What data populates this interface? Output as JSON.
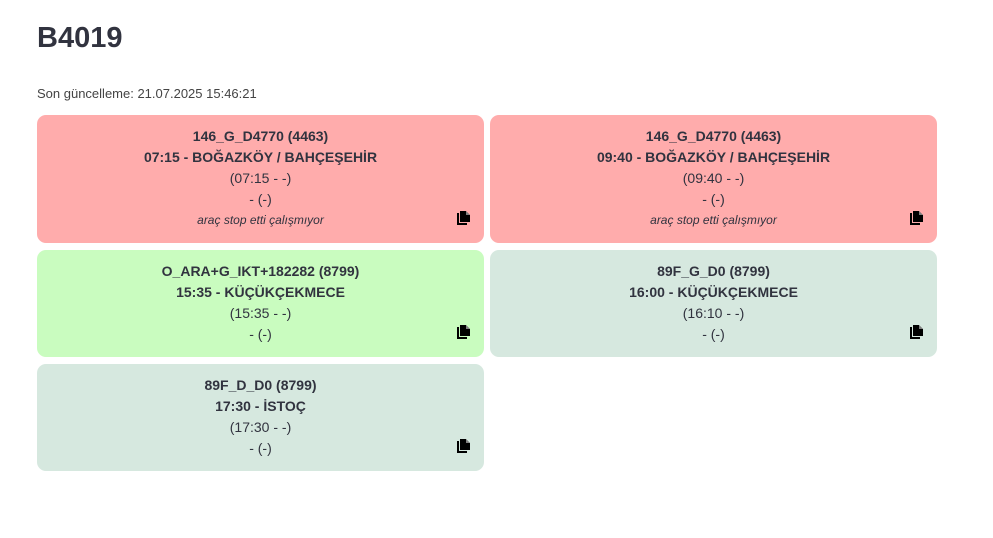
{
  "header": {
    "title": "B4019",
    "updated": "Son güncelleme: 21.07.2025 15:46:21"
  },
  "cards": [
    {
      "lines": [
        "146_G_D4770 (4463)",
        "07:15 - BOĞAZKÖY / BAHÇEŞEHİR",
        "(07:15 - -)",
        "- (-)"
      ],
      "note": "araç stop etti çalışmıyor",
      "color": "#ffacac"
    },
    {
      "lines": [
        "146_G_D4770 (4463)",
        "09:40 - BOĞAZKÖY / BAHÇEŞEHİR",
        "(09:40 - -)",
        "- (-)"
      ],
      "note": "araç stop etti çalışmıyor",
      "color": "#ffacac"
    },
    {
      "lines": [
        "O_ARA+G_IKT+182282 (8799)",
        "15:35 - KÜÇÜKÇEKMECE",
        "(15:35 - -)",
        "- (-)"
      ],
      "color": "#c9fcbf"
    },
    {
      "lines": [
        "89F_G_D0 (8799)",
        "16:00 - KÜÇÜKÇEKMECE",
        "(16:10 - -)",
        "- (-)"
      ],
      "color": "#d6e8df"
    },
    {
      "lines": [
        "89F_D_D0 (8799)",
        "17:30 - İSTOÇ",
        "(17:30 - -)",
        "- (-)"
      ],
      "color": "#d6e8df"
    }
  ]
}
